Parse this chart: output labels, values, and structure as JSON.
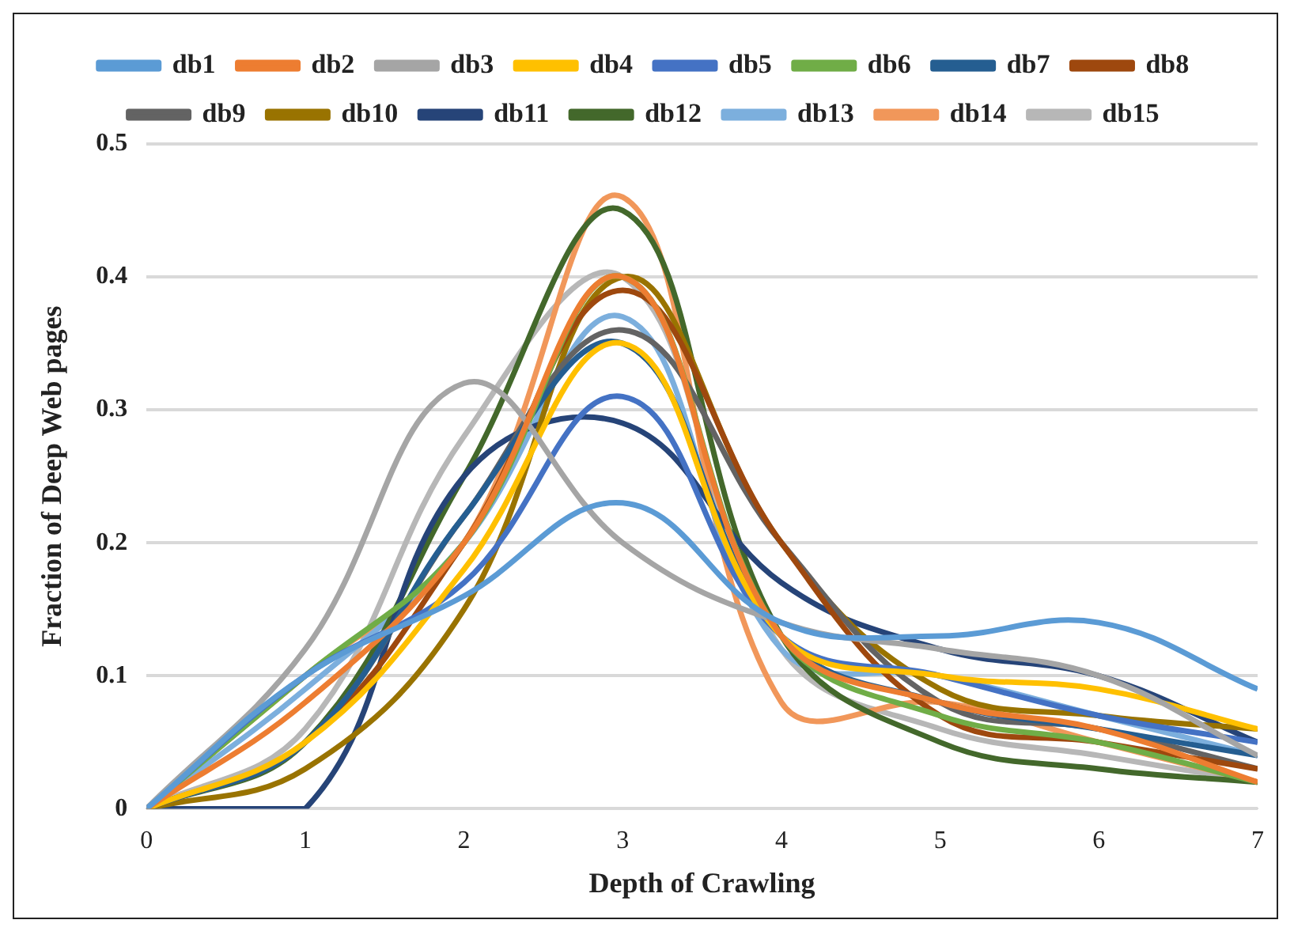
{
  "chart_data": {
    "type": "line",
    "xlabel": "Depth of Crawling",
    "ylabel": "Fraction of Deep Web pages",
    "x": [
      0,
      1,
      2,
      3,
      4,
      5,
      6,
      7
    ],
    "xlim": [
      0,
      7
    ],
    "xticks": [
      0,
      1,
      2,
      3,
      4,
      5,
      6,
      7
    ],
    "ylim": [
      0,
      0.5
    ],
    "yticks": [
      0,
      0.1,
      0.2,
      0.3,
      0.4,
      0.5
    ],
    "grid": "y",
    "legend": "top",
    "marker": "none",
    "series": [
      {
        "name": "db1",
        "color": "#5b9bd5",
        "values": [
          0,
          0.1,
          0.16,
          0.23,
          0.14,
          0.13,
          0.14,
          0.09
        ]
      },
      {
        "name": "db2",
        "color": "#ed7d31",
        "values": [
          0,
          0.08,
          0.2,
          0.4,
          0.13,
          0.08,
          0.06,
          0.02
        ]
      },
      {
        "name": "db3",
        "color": "#a5a5a5",
        "values": [
          0,
          0.12,
          0.32,
          0.2,
          0.14,
          0.12,
          0.1,
          0.04
        ]
      },
      {
        "name": "db4",
        "color": "#ffc000",
        "values": [
          0,
          0.05,
          0.18,
          0.35,
          0.13,
          0.1,
          0.09,
          0.06
        ]
      },
      {
        "name": "db5",
        "color": "#4472c4",
        "values": [
          0,
          0.1,
          0.17,
          0.31,
          0.13,
          0.1,
          0.07,
          0.05
        ]
      },
      {
        "name": "db6",
        "color": "#70ad47",
        "values": [
          0,
          0.1,
          0.2,
          0.4,
          0.13,
          0.07,
          0.05,
          0.02
        ]
      },
      {
        "name": "db7",
        "color": "#255e91",
        "values": [
          0,
          0.05,
          0.22,
          0.35,
          0.13,
          0.08,
          0.06,
          0.04
        ]
      },
      {
        "name": "db8",
        "color": "#9e480e",
        "values": [
          0,
          0.05,
          0.2,
          0.39,
          0.2,
          0.07,
          0.05,
          0.03
        ]
      },
      {
        "name": "db9",
        "color": "#636363",
        "values": [
          0,
          0.05,
          0.22,
          0.36,
          0.2,
          0.08,
          0.06,
          0.03
        ]
      },
      {
        "name": "db10",
        "color": "#997300",
        "values": [
          0,
          0.03,
          0.15,
          0.4,
          0.2,
          0.09,
          0.07,
          0.06
        ]
      },
      {
        "name": "db11",
        "color": "#264478",
        "values": [
          0,
          0,
          0.25,
          0.29,
          0.17,
          0.12,
          0.1,
          0.05
        ]
      },
      {
        "name": "db12",
        "color": "#43682b",
        "values": [
          0,
          0.05,
          0.25,
          0.45,
          0.13,
          0.05,
          0.03,
          0.02
        ]
      },
      {
        "name": "db13",
        "color": "#7cafdd",
        "values": [
          0,
          0.09,
          0.2,
          0.37,
          0.12,
          0.1,
          0.07,
          0.04
        ]
      },
      {
        "name": "db14",
        "color": "#f1975a",
        "values": [
          0,
          0.1,
          0.2,
          0.46,
          0.08,
          0.08,
          0.05,
          0.02
        ]
      },
      {
        "name": "db15",
        "color": "#b7b7b7",
        "values": [
          0,
          0.06,
          0.28,
          0.4,
          0.12,
          0.06,
          0.04,
          0.02
        ]
      }
    ]
  }
}
